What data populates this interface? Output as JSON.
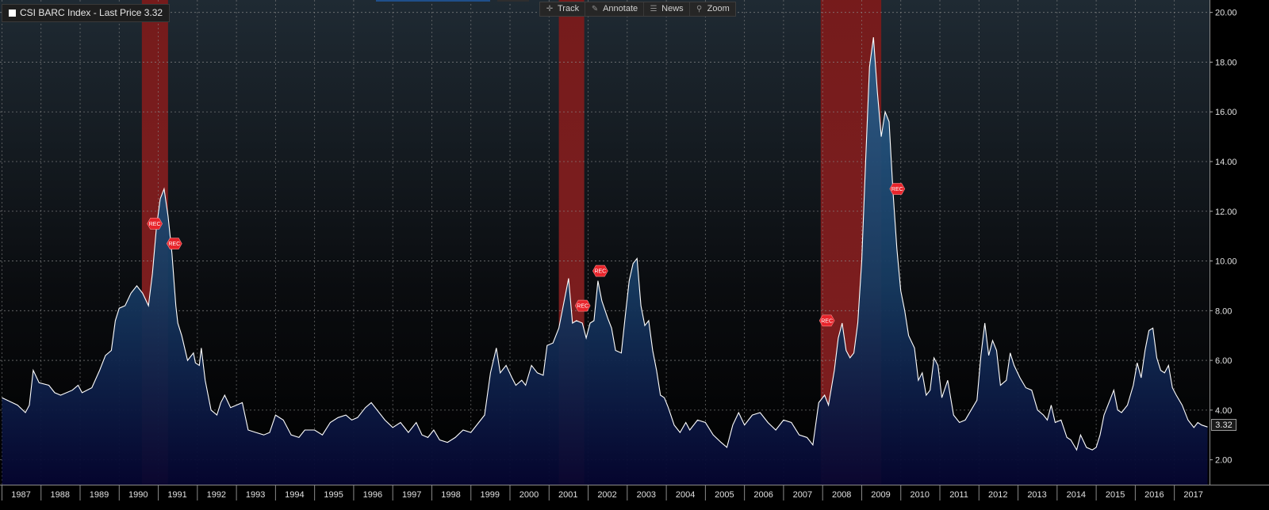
{
  "legend": {
    "label": "CSI BARC Index - Last Price 3.32",
    "swatch_color": "#ffffff"
  },
  "toolbar": {
    "items": [
      {
        "label": "Track",
        "icon": "crosshair-icon"
      },
      {
        "label": "Annotate",
        "icon": "pencil-icon"
      },
      {
        "label": "News",
        "icon": "news-icon"
      },
      {
        "label": "Zoom",
        "icon": "magnifier-icon"
      }
    ]
  },
  "last_price_tag": "3.32",
  "colors": {
    "line": "#ffffff",
    "fill_top": "#1f4f7a",
    "fill_bottom": "#000033",
    "recession_band": "#8a1e1e",
    "rec_marker": "#e8242b",
    "grid": "#9a9a9a"
  },
  "chart_data": {
    "type": "area",
    "series": [
      {
        "points": [
          [
            1987.0,
            4.5
          ],
          [
            1987.4,
            4.2
          ],
          [
            1987.6,
            3.9
          ],
          [
            1987.7,
            4.2
          ],
          [
            1987.8,
            5.6
          ],
          [
            1987.95,
            5.1
          ],
          [
            1988.2,
            5.0
          ],
          [
            1988.35,
            4.7
          ],
          [
            1988.5,
            4.6
          ],
          [
            1988.8,
            4.8
          ],
          [
            1988.95,
            5.0
          ],
          [
            1989.05,
            4.7
          ],
          [
            1989.3,
            4.9
          ],
          [
            1989.5,
            5.6
          ],
          [
            1989.65,
            6.2
          ],
          [
            1989.8,
            6.4
          ],
          [
            1989.9,
            7.6
          ],
          [
            1990.0,
            8.1
          ],
          [
            1990.15,
            8.2
          ],
          [
            1990.3,
            8.7
          ],
          [
            1990.45,
            9.0
          ],
          [
            1990.6,
            8.7
          ],
          [
            1990.75,
            8.2
          ],
          [
            1990.85,
            9.5
          ],
          [
            1990.95,
            11.3
          ],
          [
            1991.05,
            12.5
          ],
          [
            1991.15,
            12.9
          ],
          [
            1991.25,
            11.8
          ],
          [
            1991.35,
            10.3
          ],
          [
            1991.45,
            8.2
          ],
          [
            1991.5,
            7.5
          ],
          [
            1991.6,
            7.0
          ],
          [
            1991.75,
            6.0
          ],
          [
            1991.9,
            6.3
          ],
          [
            1991.95,
            5.9
          ],
          [
            1992.05,
            5.8
          ],
          [
            1992.1,
            6.5
          ],
          [
            1992.2,
            5.2
          ],
          [
            1992.35,
            4.0
          ],
          [
            1992.5,
            3.8
          ],
          [
            1992.6,
            4.3
          ],
          [
            1992.7,
            4.6
          ],
          [
            1992.85,
            4.1
          ],
          [
            1993.0,
            4.2
          ],
          [
            1993.15,
            4.3
          ],
          [
            1993.3,
            3.2
          ],
          [
            1993.5,
            3.1
          ],
          [
            1993.7,
            3.0
          ],
          [
            1993.85,
            3.1
          ],
          [
            1994.0,
            3.8
          ],
          [
            1994.2,
            3.6
          ],
          [
            1994.4,
            3.0
          ],
          [
            1994.6,
            2.9
          ],
          [
            1994.75,
            3.2
          ],
          [
            1995.0,
            3.2
          ],
          [
            1995.2,
            3.0
          ],
          [
            1995.4,
            3.5
          ],
          [
            1995.6,
            3.7
          ],
          [
            1995.8,
            3.8
          ],
          [
            1995.95,
            3.6
          ],
          [
            1996.1,
            3.7
          ],
          [
            1996.3,
            4.1
          ],
          [
            1996.45,
            4.3
          ],
          [
            1996.6,
            4.0
          ],
          [
            1996.8,
            3.6
          ],
          [
            1997.0,
            3.3
          ],
          [
            1997.2,
            3.5
          ],
          [
            1997.4,
            3.1
          ],
          [
            1997.6,
            3.5
          ],
          [
            1997.75,
            3.0
          ],
          [
            1997.9,
            2.9
          ],
          [
            1998.05,
            3.2
          ],
          [
            1998.2,
            2.8
          ],
          [
            1998.4,
            2.7
          ],
          [
            1998.6,
            2.9
          ],
          [
            1998.8,
            3.2
          ],
          [
            1999.0,
            3.1
          ],
          [
            1999.2,
            3.5
          ],
          [
            1999.35,
            3.8
          ],
          [
            1999.5,
            5.5
          ],
          [
            1999.65,
            6.5
          ],
          [
            1999.75,
            5.5
          ],
          [
            1999.9,
            5.8
          ],
          [
            2000.05,
            5.3
          ],
          [
            2000.15,
            5.0
          ],
          [
            2000.3,
            5.2
          ],
          [
            2000.4,
            5.0
          ],
          [
            2000.55,
            5.8
          ],
          [
            2000.7,
            5.5
          ],
          [
            2000.85,
            5.4
          ],
          [
            2000.95,
            6.6
          ],
          [
            2001.1,
            6.7
          ],
          [
            2001.25,
            7.3
          ],
          [
            2001.4,
            8.5
          ],
          [
            2001.5,
            9.3
          ],
          [
            2001.6,
            7.5
          ],
          [
            2001.7,
            7.6
          ],
          [
            2001.85,
            7.5
          ],
          [
            2001.95,
            6.9
          ],
          [
            2002.05,
            7.5
          ],
          [
            2002.15,
            7.6
          ],
          [
            2002.25,
            9.2
          ],
          [
            2002.35,
            8.4
          ],
          [
            2002.5,
            7.7
          ],
          [
            2002.6,
            7.3
          ],
          [
            2002.7,
            6.4
          ],
          [
            2002.85,
            6.3
          ],
          [
            2002.95,
            7.8
          ],
          [
            2003.05,
            9.2
          ],
          [
            2003.15,
            9.9
          ],
          [
            2003.25,
            10.1
          ],
          [
            2003.35,
            8.2
          ],
          [
            2003.45,
            7.4
          ],
          [
            2003.55,
            7.6
          ],
          [
            2003.65,
            6.4
          ],
          [
            2003.75,
            5.6
          ],
          [
            2003.85,
            4.6
          ],
          [
            2003.95,
            4.5
          ],
          [
            2004.05,
            4.1
          ],
          [
            2004.2,
            3.4
          ],
          [
            2004.35,
            3.1
          ],
          [
            2004.5,
            3.5
          ],
          [
            2004.6,
            3.2
          ],
          [
            2004.8,
            3.6
          ],
          [
            2005.0,
            3.5
          ],
          [
            2005.2,
            3.0
          ],
          [
            2005.4,
            2.7
          ],
          [
            2005.55,
            2.5
          ],
          [
            2005.7,
            3.4
          ],
          [
            2005.85,
            3.9
          ],
          [
            2006.0,
            3.4
          ],
          [
            2006.2,
            3.8
          ],
          [
            2006.4,
            3.9
          ],
          [
            2006.6,
            3.5
          ],
          [
            2006.8,
            3.2
          ],
          [
            2007.0,
            3.6
          ],
          [
            2007.2,
            3.5
          ],
          [
            2007.4,
            3.0
          ],
          [
            2007.6,
            2.9
          ],
          [
            2007.75,
            2.6
          ],
          [
            2007.9,
            4.3
          ],
          [
            2008.05,
            4.6
          ],
          [
            2008.15,
            4.2
          ],
          [
            2008.3,
            5.6
          ],
          [
            2008.4,
            6.9
          ],
          [
            2008.5,
            7.5
          ],
          [
            2008.6,
            6.4
          ],
          [
            2008.7,
            6.1
          ],
          [
            2008.8,
            6.3
          ],
          [
            2008.9,
            7.5
          ],
          [
            2009.0,
            10.0
          ],
          [
            2009.1,
            14.0
          ],
          [
            2009.2,
            17.8
          ],
          [
            2009.3,
            19.0
          ],
          [
            2009.4,
            16.8
          ],
          [
            2009.5,
            15.0
          ],
          [
            2009.6,
            16.0
          ],
          [
            2009.7,
            15.6
          ],
          [
            2009.8,
            12.8
          ],
          [
            2009.9,
            10.5
          ],
          [
            2010.0,
            8.8
          ],
          [
            2010.1,
            8.0
          ],
          [
            2010.2,
            7.0
          ],
          [
            2010.35,
            6.5
          ],
          [
            2010.45,
            5.2
          ],
          [
            2010.55,
            5.5
          ],
          [
            2010.65,
            4.6
          ],
          [
            2010.75,
            4.8
          ],
          [
            2010.85,
            6.1
          ],
          [
            2010.95,
            5.8
          ],
          [
            2011.05,
            4.5
          ],
          [
            2011.2,
            5.2
          ],
          [
            2011.35,
            3.8
          ],
          [
            2011.5,
            3.5
          ],
          [
            2011.65,
            3.6
          ],
          [
            2011.8,
            4.0
          ],
          [
            2011.95,
            4.4
          ],
          [
            2012.05,
            6.2
          ],
          [
            2012.15,
            7.5
          ],
          [
            2012.25,
            6.2
          ],
          [
            2012.35,
            6.8
          ],
          [
            2012.45,
            6.4
          ],
          [
            2012.55,
            5.0
          ],
          [
            2012.7,
            5.2
          ],
          [
            2012.8,
            6.3
          ],
          [
            2012.9,
            5.8
          ],
          [
            2013.05,
            5.3
          ],
          [
            2013.2,
            4.9
          ],
          [
            2013.35,
            4.8
          ],
          [
            2013.5,
            4.0
          ],
          [
            2013.65,
            3.8
          ],
          [
            2013.75,
            3.6
          ],
          [
            2013.85,
            4.2
          ],
          [
            2013.95,
            3.5
          ],
          [
            2014.1,
            3.6
          ],
          [
            2014.25,
            2.9
          ],
          [
            2014.35,
            2.8
          ],
          [
            2014.5,
            2.4
          ],
          [
            2014.6,
            3.0
          ],
          [
            2014.75,
            2.5
          ],
          [
            2014.9,
            2.4
          ],
          [
            2015.0,
            2.5
          ],
          [
            2015.1,
            3.0
          ],
          [
            2015.2,
            3.8
          ],
          [
            2015.35,
            4.4
          ],
          [
            2015.45,
            4.8
          ],
          [
            2015.55,
            4.0
          ],
          [
            2015.65,
            3.9
          ],
          [
            2015.8,
            4.2
          ],
          [
            2015.95,
            5.0
          ],
          [
            2016.05,
            5.9
          ],
          [
            2016.15,
            5.3
          ],
          [
            2016.25,
            6.4
          ],
          [
            2016.35,
            7.2
          ],
          [
            2016.45,
            7.3
          ],
          [
            2016.55,
            6.1
          ],
          [
            2016.65,
            5.6
          ],
          [
            2016.75,
            5.5
          ],
          [
            2016.85,
            5.8
          ],
          [
            2016.95,
            4.9
          ],
          [
            2017.05,
            4.6
          ],
          [
            2017.2,
            4.2
          ],
          [
            2017.35,
            3.6
          ],
          [
            2017.5,
            3.3
          ],
          [
            2017.6,
            3.5
          ],
          [
            2017.7,
            3.4
          ],
          [
            2017.85,
            3.32
          ]
        ]
      }
    ],
    "ylim": [
      1.0,
      20.5
    ],
    "yticks": [
      "2.00",
      "4.00",
      "6.00",
      "8.00",
      "10.00",
      "12.00",
      "14.00",
      "16.00",
      "18.00",
      "20.00"
    ],
    "ytick_values": [
      2,
      4,
      6,
      8,
      10,
      12,
      14,
      16,
      18,
      20
    ],
    "xlim": [
      1986.95,
      2017.9
    ],
    "xticks": [
      "1987",
      "1988",
      "1989",
      "1990",
      "1991",
      "1992",
      "1993",
      "1994",
      "1995",
      "1996",
      "1997",
      "1998",
      "1999",
      "2000",
      "2001",
      "2002",
      "2003",
      "2004",
      "2005",
      "2006",
      "2007",
      "2008",
      "2009",
      "2010",
      "2011",
      "2012",
      "2013",
      "2014",
      "2015",
      "2016",
      "2017"
    ],
    "recessions": [
      [
        1990.58,
        1991.25
      ],
      [
        2001.25,
        2001.9
      ],
      [
        2007.95,
        2009.5
      ]
    ],
    "rec_markers": [
      {
        "label": "REC",
        "x": 1990.9,
        "y": 11.5
      },
      {
        "label": "REC",
        "x": 1991.4,
        "y": 10.7
      },
      {
        "label": "REC",
        "x": 2001.85,
        "y": 8.2
      },
      {
        "label": "REC",
        "x": 2002.3,
        "y": 9.6
      },
      {
        "label": "REC",
        "x": 2008.1,
        "y": 7.6
      },
      {
        "label": "REC",
        "x": 2009.9,
        "y": 12.9
      }
    ],
    "grid": true
  }
}
